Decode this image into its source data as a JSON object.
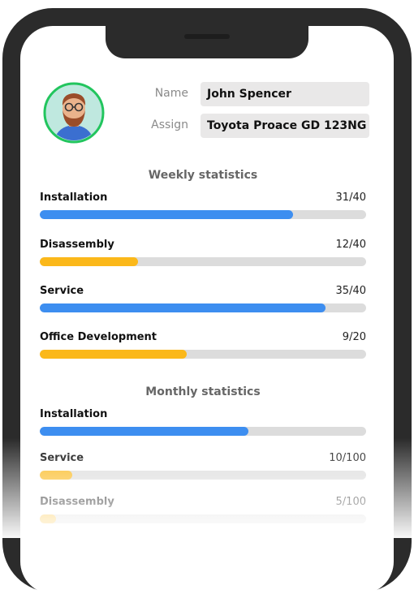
{
  "profile": {
    "name_label": "Name",
    "name": "John Spencer",
    "assign_label": "Assign",
    "assign": "Toyota Proace GD 123NG"
  },
  "sections": [
    {
      "title": "Weekly statistics",
      "items": [
        {
          "name": "Installation",
          "value": 31,
          "max": 40,
          "value_label": "31/40",
          "color": "#3d8ef0"
        },
        {
          "name": "Disassembly",
          "value": 12,
          "max": 40,
          "value_label": "12/40",
          "color": "#fbb81a"
        },
        {
          "name": "Service",
          "value": 35,
          "max": 40,
          "value_label": "35/40",
          "color": "#3d8ef0"
        },
        {
          "name": "Office Development",
          "value": 9,
          "max": 20,
          "value_label": "9/20",
          "color": "#fbb81a"
        }
      ]
    },
    {
      "title": "Monthly statistics",
      "items": [
        {
          "name": "Installation",
          "value": 64,
          "max": 100,
          "color": "#3d8ef0"
        },
        {
          "name": "Service",
          "value": 10,
          "max": 100,
          "value_label": "10/100",
          "color": "#fbb81a"
        },
        {
          "name": "Disassembly",
          "value": 5,
          "max": 100,
          "value_label": "5/100",
          "color": "#fbb81a"
        }
      ]
    }
  ]
}
